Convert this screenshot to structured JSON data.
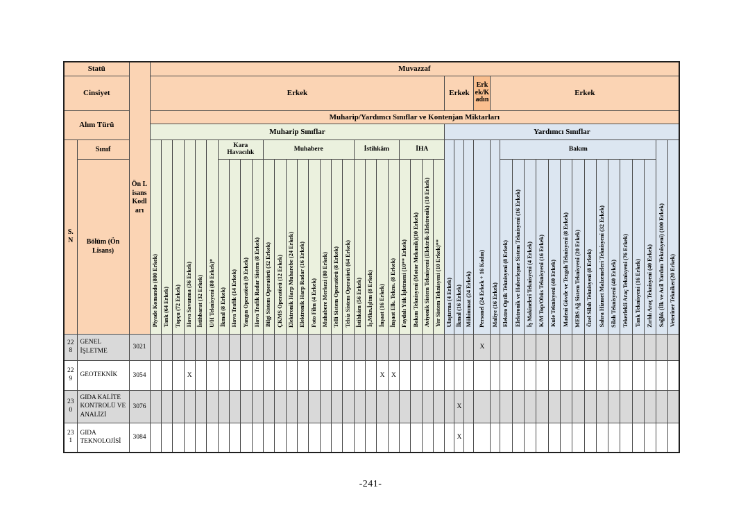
{
  "page": {
    "footer": "-241-"
  },
  "colors": {
    "header_peach": "#fbd4b4",
    "header_orange_highlight": "#fabf8f",
    "muharip_green": "#ebf1de",
    "yardimci_blue": "#dce6f1",
    "shaded_row_gray": "#d9d9d9"
  },
  "table": {
    "mark_symbol": "X",
    "left_headers": {
      "statu": "Statü",
      "cinsiyet": "Cinsiyet",
      "alim_turu": "Alım Türü",
      "sinif": "Sınıf",
      "sn": "S. N",
      "bolum": "Bölüm (Ön Lisans)",
      "kod": "Ön Lisans Kodları"
    },
    "top_headers": {
      "statu_value": "Muvazzaf",
      "cinsiyet_spans": [
        {
          "label": "Erkek",
          "cols": 26,
          "variant": "normal"
        },
        {
          "label": "Erkek",
          "cols": 3,
          "variant": "normal"
        },
        {
          "label": "Erkek/Kadın",
          "cols": 1,
          "variant": "highlight"
        },
        {
          "label": "Erkek",
          "cols": 16,
          "variant": "normal"
        }
      ],
      "alim_turu_value": "Muharip/Yardımcı Sınıflar ve Kontenjan Miktarları"
    },
    "sections": [
      {
        "name": "Muharip Sınıflar",
        "color": "green",
        "groups": [
          {
            "label": null,
            "columns": [
              "Piyade Komando (800 Erkek)",
              "Tank (64 Erkek)",
              "Topçu (72 Erkek)",
              "Hava Savunma (36 Erkek)",
              "İstihbarat (32 Erkek)",
              "U/H Teknisyeni (80 Erkek)*"
            ]
          },
          {
            "label": "Kara Havacılık",
            "columns": [
              "İkmal (8 Erkek)",
              "Hava Trafik (14 Erkek)",
              "Yangın Operatörü (9 Erkek)",
              "Hava Trafik Radar Sistem (8 Erkek)"
            ]
          },
          {
            "label": "Muhabere",
            "columns": [
              "Bilgi Sistem Operatörü (32 Erkek)",
              "ÇKMS Operatörü (12 Erkek)",
              "Elektronik Harp Muharebe (24 Erkek)",
              "Elektronik Harp Radar (16 Erkek)",
              "Foto Film (4 Erkek)",
              "Muhabere Merkezi (80 Erkek)",
              "Telli Sistem Operatörü (8 Erkek)",
              "Telsiz Sistem Operatörü (64 Erkek)"
            ]
          },
          {
            "label": "İstihkâm",
            "columns": [
              "İstihkâm (56 Erkek)",
              "İş.Mkn.İşltm (8 Erkek)",
              "İnşaat (16 Erkek)",
              "İnşaat Elk. Tekns. (8 Erkek)"
            ]
          },
          {
            "label": "İHA",
            "columns": [
              "Faydalı Yük İşletmeni (10** Erkek)",
              "Bakım Teknisyeni (Motor Mekanik)(10 Erkek)",
              "Aviyonik Sistem Teknisyeni (Elektrik-Elektronik) (10 Erkek)",
              "Yer Sistem Teknisyeni (10 Erkek)**"
            ]
          }
        ]
      },
      {
        "name": "Yardımcı Sınıflar",
        "color": "blue",
        "groups": [
          {
            "label": null,
            "columns": [
              "Ulaştırma (4 Erkek)",
              "İkmal (16 Erkek)",
              "Mühimmat (24 Erkek)",
              "Personel (24 Erkek + 16 Kadın)",
              "Maliye (16 Erkek)"
            ]
          },
          {
            "label": "Bakım",
            "columns": [
              "Elektro Optik Teknisyeni (8 Erkek)",
              "Elektronik ve Haberleşme Sistem Teknisyeni (16 Erkek)",
              "İş Makineleri Teknisyeni (4 Erkek)",
              "K/M Top/Obüs Teknisyeni (16 Erkek)",
              "Kule Teknisyeni (40 Erkek)",
              "Madeni Gövde ve Tezgah Teknisyeni (8 Erkek)",
              "MEBS Ağ Sistem Teknisyeni (20 Erkek)",
              "Özel Silah Teknisyeni (8 Erkek)",
              "Sahra Hizmet Malzemeleri Teknisyeni (32 Erkek)",
              "Silah Teknisyeni (40 Erkek)",
              "Tekerlekli Araç Teknisyeni (76 Erkek)",
              "Tank Teknisyeni (16 Erkek)",
              "Zırhlı Araç Teknisyeni (40 Erkek)"
            ]
          },
          {
            "label": null,
            "columns": [
              "Sağlık (İlk ve Acil Yardım Teknisyeni) (100 Erkek)",
              "Veteriner Tekniker(20 Erkek)"
            ]
          }
        ]
      }
    ],
    "rows": [
      {
        "sn": "228",
        "bolum": "GENEL İŞLETME",
        "kod": "3021",
        "shaded": true,
        "marks": [
          "Personel (24 Erkek + 16 Kadın)"
        ]
      },
      {
        "sn": "229",
        "bolum": "GEOTEKNİK",
        "kod": "3054",
        "shaded": false,
        "marks": [
          "Hava Savunma (36 Erkek)",
          "İnşaat (16 Erkek)",
          "İnşaat Elk. Tekns. (8 Erkek)"
        ]
      },
      {
        "sn": "230",
        "bolum": "GIDA KALİTE KONTROLÜ VE ANALİZİ",
        "kod": "3076",
        "shaded": true,
        "marks": [
          "İkmal (16 Erkek)"
        ]
      },
      {
        "sn": "231",
        "bolum": "GIDA TEKNOLOJİSİ",
        "kod": "3084",
        "shaded": false,
        "marks": [
          "İkmal (16 Erkek)"
        ]
      }
    ]
  }
}
